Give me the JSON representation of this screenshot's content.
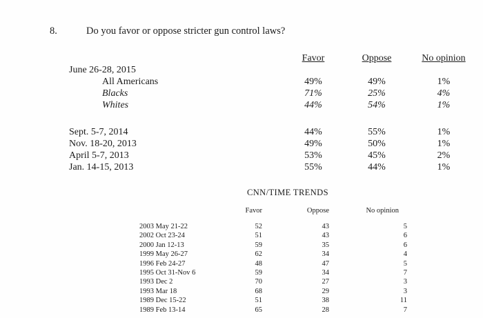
{
  "question": {
    "number": "8.",
    "text": "Do you favor or oppose stricter gun control laws?"
  },
  "main_table": {
    "headers": [
      "Favor",
      "Oppose",
      "No opinion"
    ],
    "date_group": "June 26-28, 2015",
    "subgroups": [
      {
        "label": "All Americans",
        "favor": "49%",
        "oppose": "49%",
        "no_opinion": "1%"
      },
      {
        "label": "Blacks",
        "favor": "71%",
        "oppose": "25%",
        "no_opinion": "4%"
      },
      {
        "label": "Whites",
        "favor": "44%",
        "oppose": "54%",
        "no_opinion": "1%"
      }
    ],
    "earlier_polls": [
      {
        "label": "Sept. 5-7, 2014",
        "favor": "44%",
        "oppose": "55%",
        "no_opinion": "1%"
      },
      {
        "label": "Nov. 18-20, 2013",
        "favor": "49%",
        "oppose": "50%",
        "no_opinion": "1%"
      },
      {
        "label": "April 5-7, 2013",
        "favor": "53%",
        "oppose": "45%",
        "no_opinion": "2%"
      },
      {
        "label": "Jan. 14-15, 2013",
        "favor": "55%",
        "oppose": "44%",
        "no_opinion": "1%"
      }
    ]
  },
  "trends": {
    "title": "CNN/TIME TRENDS",
    "headers": [
      "Favor",
      "Oppose",
      "No opinion"
    ],
    "rows": [
      {
        "label": "2003 May 21-22",
        "favor": "52",
        "oppose": "43",
        "no_opinion": "5"
      },
      {
        "label": "2002 Oct 23-24",
        "favor": "51",
        "oppose": "43",
        "no_opinion": "6"
      },
      {
        "label": "2000 Jan 12-13",
        "favor": "59",
        "oppose": "35",
        "no_opinion": "6"
      },
      {
        "label": "1999 May 26-27",
        "favor": "62",
        "oppose": "34",
        "no_opinion": "4"
      },
      {
        "label": "1996 Feb 24-27",
        "favor": "48",
        "oppose": "47",
        "no_opinion": "5"
      },
      {
        "label": "1995 Oct 31-Nov 6",
        "favor": "59",
        "oppose": "34",
        "no_opinion": "7"
      },
      {
        "label": "1993 Dec 2",
        "favor": "70",
        "oppose": "27",
        "no_opinion": "3"
      },
      {
        "label": "1993 Mar 18",
        "favor": "68",
        "oppose": "29",
        "no_opinion": "3"
      },
      {
        "label": "1989 Dec 15-22",
        "favor": "51",
        "oppose": "38",
        "no_opinion": "11"
      },
      {
        "label": "1989 Feb 13-14",
        "favor": "65",
        "oppose": "28",
        "no_opinion": "7"
      }
    ]
  }
}
